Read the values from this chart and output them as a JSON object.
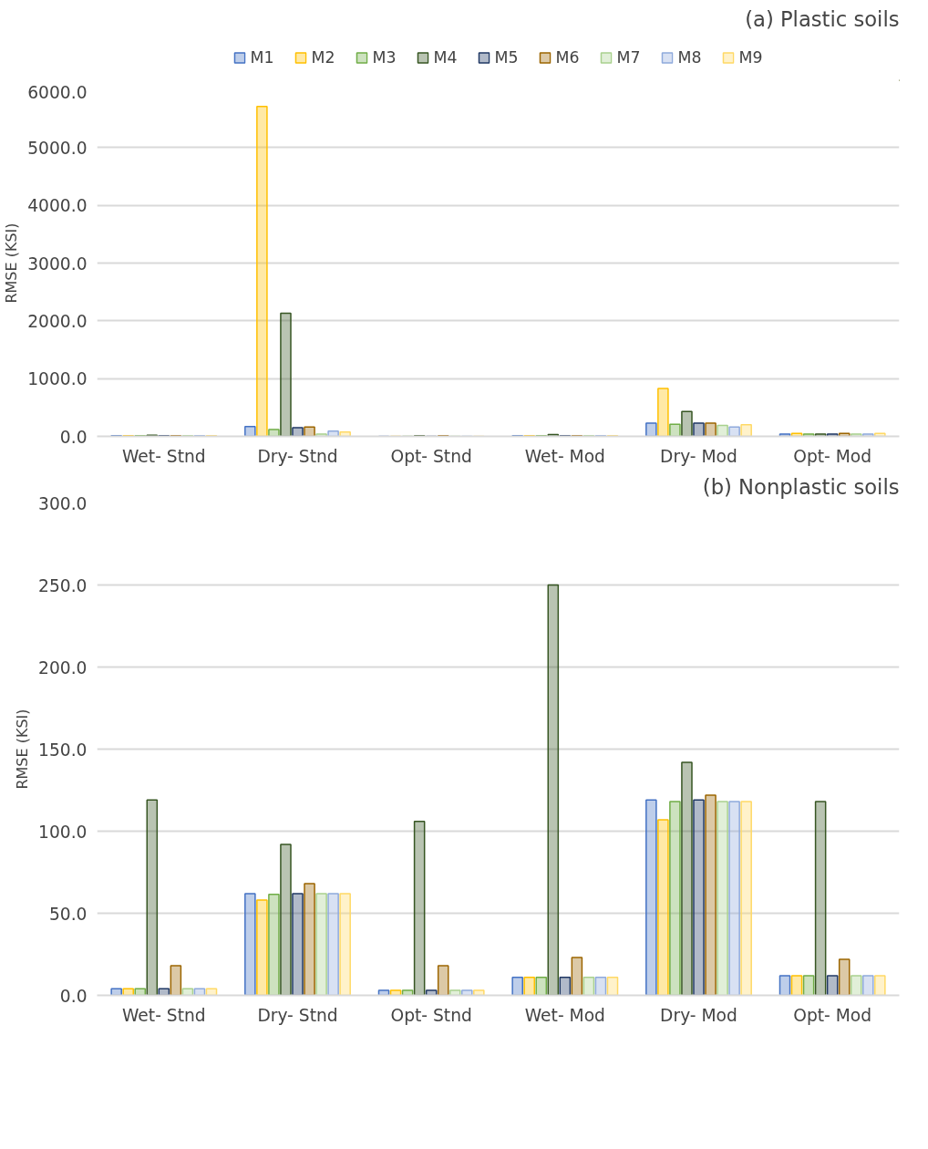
{
  "chart_data": [
    {
      "type": "bar",
      "title": "(a) Plastic soils",
      "ylabel": "RMSE (KSI)",
      "categories": [
        "Wet- Stnd",
        "Dry- Stnd",
        "Opt- Stnd",
        "Wet- Mod",
        "Dry- Mod",
        "Opt- Mod"
      ],
      "ylim": [
        0,
        6000
      ],
      "yticks": [
        {
          "value": 0,
          "label": "0.0"
        },
        {
          "value": 1000,
          "label": "1000.0"
        },
        {
          "value": 2000,
          "label": "2000.0"
        },
        {
          "value": 3000,
          "label": "3000.0"
        },
        {
          "value": 4000,
          "label": "4000.0"
        },
        {
          "value": 5000,
          "label": "5000.0"
        },
        {
          "value": 6000,
          "label": "6000.0"
        }
      ],
      "grid": "y",
      "legend": "top",
      "series": [
        {
          "name": "M1",
          "color": "#4472c4",
          "values": [
            10,
            170,
            0,
            10,
            230,
            40
          ]
        },
        {
          "name": "M2",
          "color": "#ffc000",
          "values": [
            10,
            5710,
            0,
            10,
            830,
            50
          ]
        },
        {
          "name": "M3",
          "color": "#70ad47",
          "values": [
            10,
            120,
            0,
            10,
            210,
            40
          ]
        },
        {
          "name": "M4",
          "color": "#375623",
          "values": [
            20,
            2130,
            10,
            30,
            430,
            40
          ]
        },
        {
          "name": "M5",
          "color": "#203864",
          "values": [
            10,
            150,
            0,
            10,
            230,
            40
          ]
        },
        {
          "name": "M6",
          "color": "#9c6500",
          "values": [
            10,
            160,
            10,
            10,
            230,
            50
          ]
        },
        {
          "name": "M7",
          "color": "#a9d18e",
          "values": [
            10,
            40,
            0,
            10,
            190,
            40
          ]
        },
        {
          "name": "M8",
          "color": "#8faadc",
          "values": [
            10,
            90,
            0,
            10,
            160,
            40
          ]
        },
        {
          "name": "M9",
          "color": "#ffd966",
          "values": [
            10,
            75,
            0,
            10,
            200,
            50
          ]
        }
      ]
    },
    {
      "type": "bar",
      "title": "(b) Nonplastic soils",
      "ylabel": "RMSE (KSI)",
      "categories": [
        "Wet- Stnd",
        "Dry- Stnd",
        "Opt- Stnd",
        "Wet- Mod",
        "Dry- Mod",
        "Opt- Mod"
      ],
      "ylim": [
        0,
        300
      ],
      "yticks": [
        {
          "value": 0,
          "label": "0.0"
        },
        {
          "value": 50,
          "label": "50.0"
        },
        {
          "value": 100,
          "label": "100.0"
        },
        {
          "value": 150,
          "label": "150.0"
        },
        {
          "value": 200,
          "label": "200.0"
        },
        {
          "value": 250,
          "label": "250.0"
        },
        {
          "value": 300,
          "label": "300.0"
        }
      ],
      "grid": "y",
      "legend": false,
      "series": [
        {
          "color": "#4472c4",
          "values": [
            4,
            62,
            3,
            11,
            119,
            12
          ]
        },
        {
          "color": "#ffc000",
          "values": [
            4,
            58,
            3,
            11,
            107,
            12
          ]
        },
        {
          "color": "#70ad47",
          "values": [
            4,
            61.5,
            3,
            11,
            118,
            12
          ]
        },
        {
          "color": "#375623",
          "values": [
            119,
            92,
            106,
            250,
            142,
            118
          ]
        },
        {
          "color": "#203864",
          "values": [
            4,
            62,
            3,
            11,
            119,
            12
          ]
        },
        {
          "color": "#9c6500",
          "values": [
            18,
            68,
            18,
            23,
            122,
            22
          ]
        },
        {
          "color": "#a9d18e",
          "values": [
            4,
            62,
            3,
            11,
            118,
            12
          ]
        },
        {
          "color": "#8faadc",
          "values": [
            4,
            62,
            3,
            11,
            118,
            12
          ]
        },
        {
          "color": "#ffd966",
          "values": [
            4,
            62,
            3,
            11,
            118,
            12
          ]
        }
      ]
    }
  ]
}
